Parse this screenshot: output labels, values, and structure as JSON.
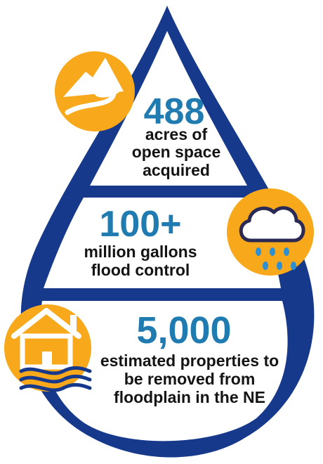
{
  "colors": {
    "drop_outline": "#17398c",
    "stat_blue": "#1f7bb0",
    "text_dark": "#141414",
    "icon_orange": "#f7a81b",
    "rain_blue": "#2e8fd1",
    "cloud_outline": "#2b2a55",
    "wave_blue": "#17398c"
  },
  "sections": [
    {
      "icon": "mountain-river-icon",
      "stat": "488",
      "lines": [
        "acres of",
        "open space",
        "acquired"
      ]
    },
    {
      "icon": "rain-cloud-icon",
      "stat": "100+",
      "lines": [
        "million gallons",
        "flood control"
      ]
    },
    {
      "icon": "flooded-house-icon",
      "stat": "5,000",
      "lines": [
        "estimated properties to",
        "be removed from",
        "floodplain in the NE"
      ]
    }
  ]
}
